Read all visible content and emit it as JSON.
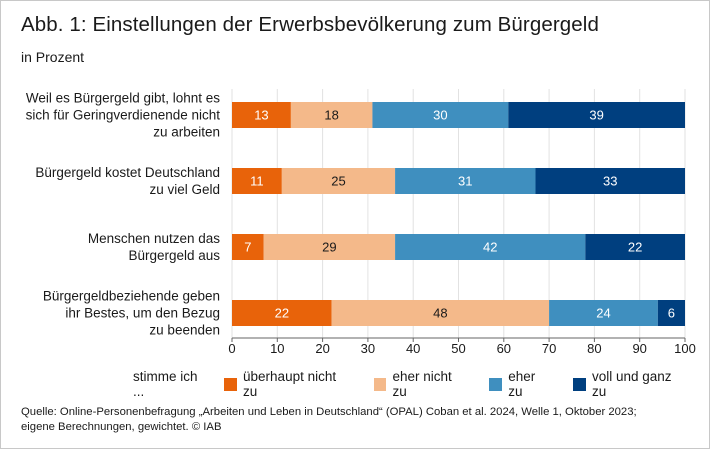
{
  "title": "Abb. 1: Einstellungen der Erwerbsbevölkerung zum Bürgergeld",
  "subtitle": "in Prozent",
  "legend_prefix": "stimme ich ...",
  "source_line1": "Quelle: Online-Personenbefragung „Arbeiten und Leben in Deutschland“ (OPAL) Coban et al. 2024, Welle 1, Oktober 2023;",
  "source_line2": "eigene Berechnungen, gewichtet.  © IAB",
  "colors": {
    "überhaupt nicht zu": "#e8630a",
    "eher nicht zu": "#f4b98a",
    "eher zu": "#3f8fbf",
    "voll und ganz zu": "#003f7f"
  },
  "chart_data": {
    "type": "bar",
    "orientation": "horizontal",
    "stacked": true,
    "categories": [
      [
        "Weil es Bürgergeld gibt, lohnt es",
        "sich für Geringverdienende nicht",
        "zu arbeiten"
      ],
      [
        "Bürgergeld kostet Deutschland",
        "zu viel Geld"
      ],
      [
        "Menschen nutzen das",
        "Bürgergeld aus"
      ],
      [
        "Bürgergeldbeziehende geben",
        "ihr Bestes, um den Bezug",
        "zu beenden"
      ]
    ],
    "series": [
      {
        "name": "überhaupt nicht zu",
        "values": [
          13,
          11,
          7,
          22
        ]
      },
      {
        "name": "eher nicht zu",
        "values": [
          18,
          25,
          29,
          48
        ]
      },
      {
        "name": "eher zu",
        "values": [
          30,
          31,
          42,
          24
        ]
      },
      {
        "name": "voll und ganz zu",
        "values": [
          39,
          33,
          22,
          6
        ]
      }
    ],
    "xlim": [
      0,
      100
    ],
    "xticks": [
      0,
      10,
      20,
      30,
      40,
      50,
      60,
      70,
      80,
      90,
      100
    ],
    "grid": true,
    "legend_position": "bottom"
  }
}
